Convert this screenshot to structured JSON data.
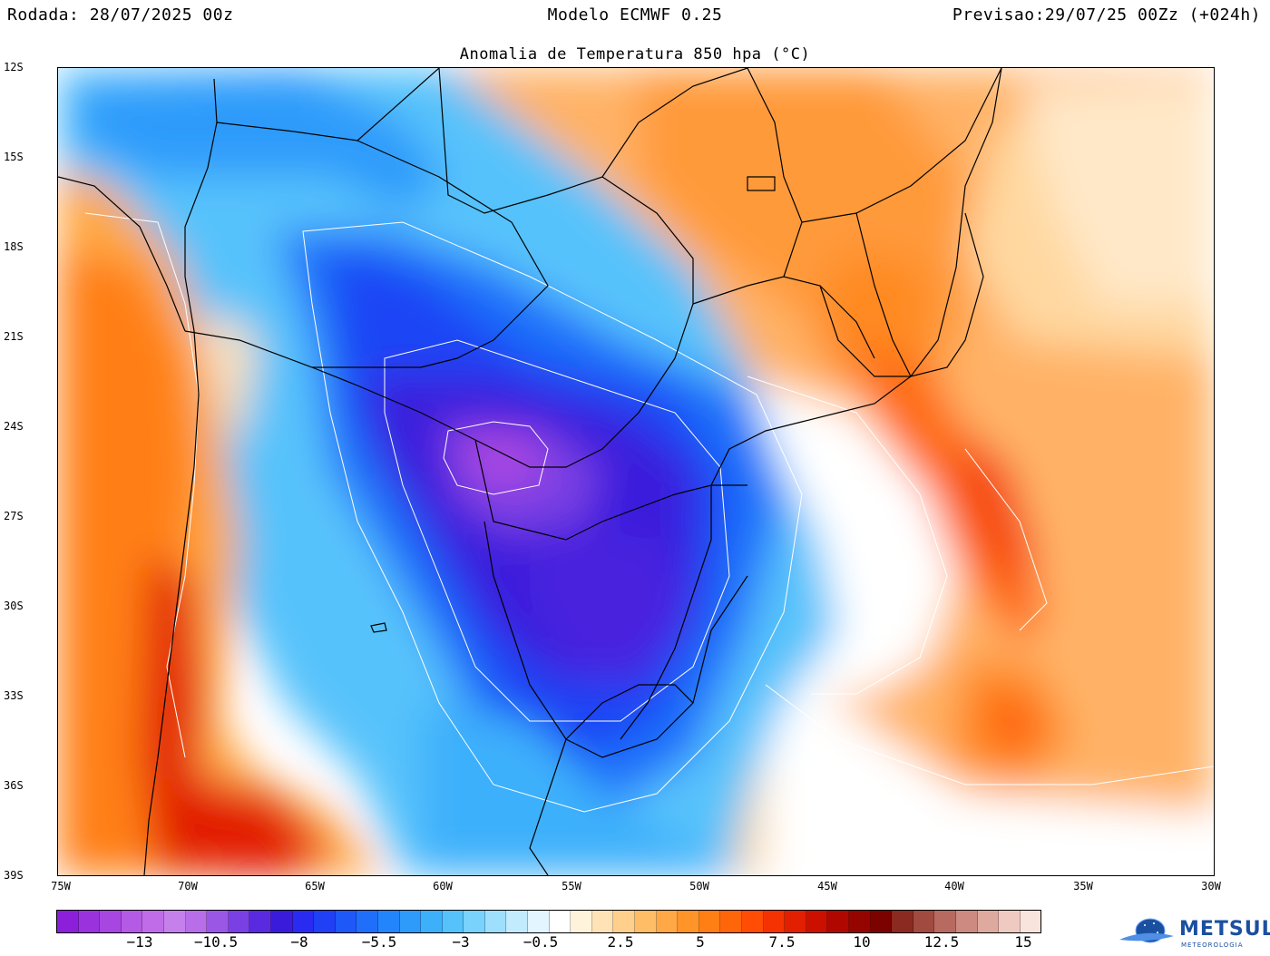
{
  "header": {
    "left": "Rodada: 28/07/2025 00z",
    "center": "Modelo ECMWF 0.25",
    "right": "Previsao:29/07/25 00Zz (+024h)"
  },
  "map_title": "Anomalia de Temperatura 850 hpa (°C)",
  "lat_labels": [
    "12S",
    "15S",
    "18S",
    "21S",
    "24S",
    "27S",
    "30S",
    "33S",
    "36S",
    "39S"
  ],
  "lon_labels": [
    "75W",
    "70W",
    "65W",
    "60W",
    "55W",
    "50W",
    "45W",
    "40W",
    "35W",
    "30W"
  ],
  "colorbar": {
    "colors": [
      "#8c1fd9",
      "#9a33dd",
      "#a846e1",
      "#b45ae5",
      "#c06ce8",
      "#c680ec",
      "#b86ee9",
      "#9a57e6",
      "#7a40e3",
      "#5a2ae0",
      "#3a1bdc",
      "#2a2bf0",
      "#1f40f5",
      "#1e58f8",
      "#1f6ffa",
      "#2385fb",
      "#2e9bfb",
      "#3db0fb",
      "#56c2fb",
      "#78d2fc",
      "#9edffd",
      "#c2ebfd",
      "#e3f5fe",
      "#ffffff",
      "#fff3dc",
      "#ffe2b5",
      "#ffd08c",
      "#ffbd66",
      "#ffa845",
      "#ff9428",
      "#ff7f14",
      "#ff660a",
      "#ff4d05",
      "#f53302",
      "#e21f01",
      "#cc1000",
      "#b00800",
      "#960400",
      "#7c0200",
      "#8a2a20",
      "#a04a40",
      "#b86a60",
      "#cc8a80",
      "#deaaa0",
      "#eecac0",
      "#f8e4dc"
    ],
    "labels": [
      "−13",
      "−10.5",
      "−8",
      "−5.5",
      "−3",
      "−0.5",
      "2.5",
      "5",
      "7.5",
      "10",
      "12.5",
      "15"
    ]
  },
  "anomaly_field": {
    "units": "°C",
    "cold_core_center": {
      "lat": -25.5,
      "lon": -57.0,
      "anomaly": -12.0
    },
    "warm_ocean_max": {
      "lat": -28.0,
      "lon": -38.0,
      "anomaly": 9.0
    },
    "warm_andes_max": {
      "lat": -36.0,
      "lon": -70.5,
      "anomaly": 9.0
    }
  },
  "logo": {
    "name": "METSUL",
    "subtitle": "METEOROLOGIA"
  },
  "colors": {
    "border": "#000000",
    "contour": "#ffffff"
  }
}
